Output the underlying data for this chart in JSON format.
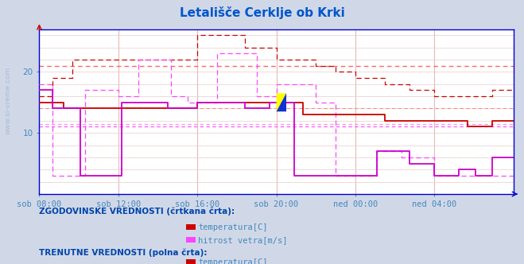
{
  "title": "Letališče Cerklje ob Krki",
  "title_color": "#0055cc",
  "bg_color": "#d0d8e8",
  "plot_bg_color": "#ffffff",
  "grid_color_v": "#ddaaaa",
  "grid_color_h": "#ddcccc",
  "x_labels": [
    "sob 08:00",
    "sob 12:00",
    "sob 16:00",
    "sob 20:00",
    "ned 00:00",
    "ned 04:00"
  ],
  "x_ticks_idx": [
    0,
    48,
    96,
    144,
    192,
    240
  ],
  "total_points": 289,
  "ylim": [
    0,
    27
  ],
  "yticks": [
    10,
    20
  ],
  "hist_temp_color": "#cc0000",
  "hist_wind_color": "#ff44ff",
  "curr_temp_color": "#cc0000",
  "curr_wind_color": "#cc00cc",
  "ref_temp_hist": 21.0,
  "ref_temp_curr": 14.0,
  "ref_wind_hist": 11.5,
  "ref_wind_curr": 11.5,
  "axis_color": "#0000cc",
  "tick_label_color": "#4488bb",
  "legend_color": "#0044aa",
  "legend1_title": "ZGODOVINSKE VREDNOSTI (črtkana črta):",
  "legend2_title": "TRENUTNE VREDNOSTI (polna črta):",
  "legend_temp": "temperatura[C]",
  "legend_wind": "hitrost vetra[m/s]",
  "watermark": "www.si-vreme.com",
  "watermark_color": "#9ab0cc",
  "side_text_color": "#7799bb"
}
